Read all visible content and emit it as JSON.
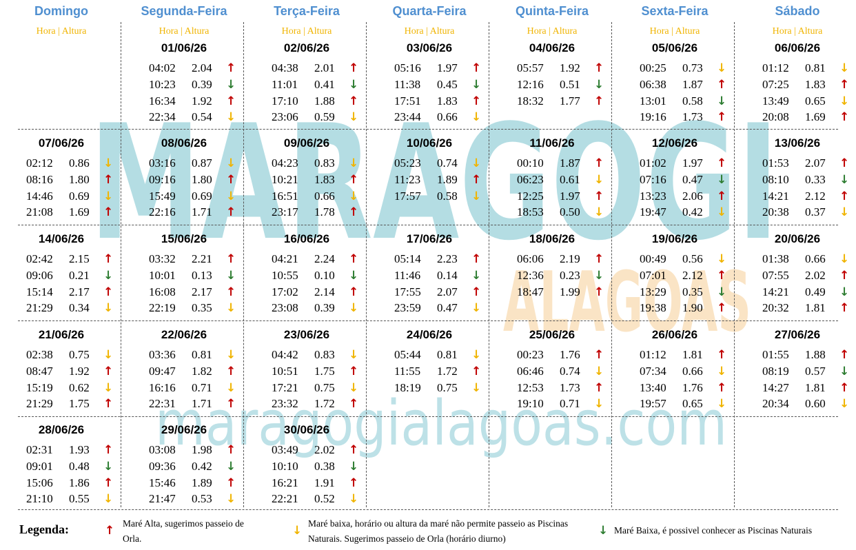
{
  "watermark": {
    "title": "MARAGOGI",
    "subtitle": "ALAGOAS",
    "url": "maragogialagoas.com"
  },
  "days": [
    "Domingo",
    "Segunda-Feira",
    "Terça-Feira",
    "Quarta-Feira",
    "Quinta-Feira",
    "Sexta-Feira",
    "Sábado"
  ],
  "subheader": "Hora | Altura",
  "colors": {
    "header": "#4f8fd0",
    "high": "#c00000",
    "low_no_tour": "#f0b400",
    "low_pools": "#2e7d32"
  },
  "weeks": [
    [
      null,
      {
        "date": "01/06/26",
        "tides": [
          [
            "04:02",
            "2.04",
            "up"
          ],
          [
            "10:23",
            "0.39",
            "dg"
          ],
          [
            "16:34",
            "1.92",
            "up"
          ],
          [
            "22:34",
            "0.54",
            "dy"
          ]
        ]
      },
      {
        "date": "02/06/26",
        "tides": [
          [
            "04:38",
            "2.01",
            "up"
          ],
          [
            "11:01",
            "0.41",
            "dg"
          ],
          [
            "17:10",
            "1.88",
            "up"
          ],
          [
            "23:06",
            "0.59",
            "dy"
          ]
        ]
      },
      {
        "date": "03/06/26",
        "tides": [
          [
            "05:16",
            "1.97",
            "up"
          ],
          [
            "11:38",
            "0.45",
            "dg"
          ],
          [
            "17:51",
            "1.83",
            "up"
          ],
          [
            "23:44",
            "0.66",
            "dy"
          ]
        ]
      },
      {
        "date": "04/06/26",
        "tides": [
          [
            "05:57",
            "1.92",
            "up"
          ],
          [
            "12:16",
            "0.51",
            "dg"
          ],
          [
            "18:32",
            "1.77",
            "up"
          ]
        ]
      },
      {
        "date": "05/06/26",
        "tides": [
          [
            "00:25",
            "0.73",
            "dy"
          ],
          [
            "06:38",
            "1.87",
            "up"
          ],
          [
            "13:01",
            "0.58",
            "dg"
          ],
          [
            "19:16",
            "1.73",
            "up"
          ]
        ]
      },
      {
        "date": "06/06/26",
        "tides": [
          [
            "01:12",
            "0.81",
            "dy"
          ],
          [
            "07:25",
            "1.83",
            "up"
          ],
          [
            "13:49",
            "0.65",
            "dy"
          ],
          [
            "20:08",
            "1.69",
            "up"
          ]
        ]
      }
    ],
    [
      {
        "date": "07/06/26",
        "tides": [
          [
            "02:12",
            "0.86",
            "dy"
          ],
          [
            "08:16",
            "1.80",
            "up"
          ],
          [
            "14:46",
            "0.69",
            "dy"
          ],
          [
            "21:08",
            "1.69",
            "up"
          ]
        ]
      },
      {
        "date": "08/06/26",
        "tides": [
          [
            "03:16",
            "0.87",
            "dy"
          ],
          [
            "09:16",
            "1.80",
            "up"
          ],
          [
            "15:49",
            "0.69",
            "dy"
          ],
          [
            "22:16",
            "1.71",
            "up"
          ]
        ]
      },
      {
        "date": "09/06/26",
        "tides": [
          [
            "04:23",
            "0.83",
            "dy"
          ],
          [
            "10:21",
            "1.83",
            "up"
          ],
          [
            "16:51",
            "0.66",
            "dy"
          ],
          [
            "23:17",
            "1.78",
            "up"
          ]
        ]
      },
      {
        "date": "10/06/26",
        "tides": [
          [
            "05:23",
            "0.74",
            "dy"
          ],
          [
            "11:23",
            "1.89",
            "up"
          ],
          [
            "17:57",
            "0.58",
            "dy"
          ]
        ]
      },
      {
        "date": "11/06/26",
        "tides": [
          [
            "00:10",
            "1.87",
            "up"
          ],
          [
            "06:23",
            "0.61",
            "dy"
          ],
          [
            "12:25",
            "1.97",
            "up"
          ],
          [
            "18:53",
            "0.50",
            "dy"
          ]
        ]
      },
      {
        "date": "12/06/26",
        "tides": [
          [
            "01:02",
            "1.97",
            "up"
          ],
          [
            "07:16",
            "0.47",
            "dg"
          ],
          [
            "13:23",
            "2.06",
            "up"
          ],
          [
            "19:47",
            "0.42",
            "dy"
          ]
        ]
      },
      {
        "date": "13/06/26",
        "tides": [
          [
            "01:53",
            "2.07",
            "up"
          ],
          [
            "08:10",
            "0.33",
            "dg"
          ],
          [
            "14:21",
            "2.12",
            "up"
          ],
          [
            "20:38",
            "0.37",
            "dy"
          ]
        ]
      }
    ],
    [
      {
        "date": "14/06/26",
        "tides": [
          [
            "02:42",
            "2.15",
            "up"
          ],
          [
            "09:06",
            "0.21",
            "dg"
          ],
          [
            "15:14",
            "2.17",
            "up"
          ],
          [
            "21:29",
            "0.34",
            "dy"
          ]
        ]
      },
      {
        "date": "15/06/26",
        "tides": [
          [
            "03:32",
            "2.21",
            "up"
          ],
          [
            "10:01",
            "0.13",
            "dg"
          ],
          [
            "16:08",
            "2.17",
            "up"
          ],
          [
            "22:19",
            "0.35",
            "dy"
          ]
        ]
      },
      {
        "date": "16/06/26",
        "tides": [
          [
            "04:21",
            "2.24",
            "up"
          ],
          [
            "10:55",
            "0.10",
            "dg"
          ],
          [
            "17:02",
            "2.14",
            "up"
          ],
          [
            "23:08",
            "0.39",
            "dy"
          ]
        ]
      },
      {
        "date": "17/06/26",
        "tides": [
          [
            "05:14",
            "2.23",
            "up"
          ],
          [
            "11:46",
            "0.14",
            "dg"
          ],
          [
            "17:55",
            "2.07",
            "up"
          ],
          [
            "23:59",
            "0.47",
            "dy"
          ]
        ]
      },
      {
        "date": "18/06/26",
        "tides": [
          [
            "06:06",
            "2.19",
            "up"
          ],
          [
            "12:36",
            "0.23",
            "dg"
          ],
          [
            "18:47",
            "1.99",
            "up"
          ]
        ]
      },
      {
        "date": "19/06/26",
        "tides": [
          [
            "00:49",
            "0.56",
            "dy"
          ],
          [
            "07:01",
            "2.12",
            "up"
          ],
          [
            "13:29",
            "0.35",
            "dg"
          ],
          [
            "19:38",
            "1.90",
            "up"
          ]
        ]
      },
      {
        "date": "20/06/26",
        "tides": [
          [
            "01:38",
            "0.66",
            "dy"
          ],
          [
            "07:55",
            "2.02",
            "up"
          ],
          [
            "14:21",
            "0.49",
            "dg"
          ],
          [
            "20:32",
            "1.81",
            "up"
          ]
        ]
      }
    ],
    [
      {
        "date": "21/06/26",
        "tides": [
          [
            "02:38",
            "0.75",
            "dy"
          ],
          [
            "08:47",
            "1.92",
            "up"
          ],
          [
            "15:19",
            "0.62",
            "dy"
          ],
          [
            "21:29",
            "1.75",
            "up"
          ]
        ]
      },
      {
        "date": "22/06/26",
        "tides": [
          [
            "03:36",
            "0.81",
            "dy"
          ],
          [
            "09:47",
            "1.82",
            "up"
          ],
          [
            "16:16",
            "0.71",
            "dy"
          ],
          [
            "22:31",
            "1.71",
            "up"
          ]
        ]
      },
      {
        "date": "23/06/26",
        "tides": [
          [
            "04:42",
            "0.83",
            "dy"
          ],
          [
            "10:51",
            "1.75",
            "up"
          ],
          [
            "17:21",
            "0.75",
            "dy"
          ],
          [
            "23:32",
            "1.72",
            "up"
          ]
        ]
      },
      {
        "date": "24/06/26",
        "tides": [
          [
            "05:44",
            "0.81",
            "dy"
          ],
          [
            "11:55",
            "1.72",
            "up"
          ],
          [
            "18:19",
            "0.75",
            "dy"
          ]
        ]
      },
      {
        "date": "25/06/26",
        "tides": [
          [
            "00:23",
            "1.76",
            "up"
          ],
          [
            "06:46",
            "0.74",
            "dy"
          ],
          [
            "12:53",
            "1.73",
            "up"
          ],
          [
            "19:10",
            "0.71",
            "dy"
          ]
        ]
      },
      {
        "date": "26/06/26",
        "tides": [
          [
            "01:12",
            "1.81",
            "up"
          ],
          [
            "07:34",
            "0.66",
            "dy"
          ],
          [
            "13:40",
            "1.76",
            "up"
          ],
          [
            "19:57",
            "0.65",
            "dy"
          ]
        ]
      },
      {
        "date": "27/06/26",
        "tides": [
          [
            "01:55",
            "1.88",
            "up"
          ],
          [
            "08:19",
            "0.57",
            "dg"
          ],
          [
            "14:27",
            "1.81",
            "up"
          ],
          [
            "20:34",
            "0.60",
            "dy"
          ]
        ]
      }
    ],
    [
      {
        "date": "28/06/26",
        "tides": [
          [
            "02:31",
            "1.93",
            "up"
          ],
          [
            "09:01",
            "0.48",
            "dg"
          ],
          [
            "15:06",
            "1.86",
            "up"
          ],
          [
            "21:10",
            "0.55",
            "dy"
          ]
        ]
      },
      {
        "date": "29/06/26",
        "tides": [
          [
            "03:08",
            "1.98",
            "up"
          ],
          [
            "09:36",
            "0.42",
            "dg"
          ],
          [
            "15:46",
            "1.89",
            "up"
          ],
          [
            "21:47",
            "0.53",
            "dy"
          ]
        ]
      },
      {
        "date": "30/06/26",
        "tides": [
          [
            "03:49",
            "2.02",
            "up"
          ],
          [
            "10:10",
            "0.38",
            "dg"
          ],
          [
            "16:21",
            "1.91",
            "up"
          ],
          [
            "22:21",
            "0.52",
            "dy"
          ]
        ]
      },
      null,
      null,
      null,
      null
    ]
  ],
  "legend": {
    "title": "Legenda:",
    "high": "Maré Alta, sugerimos passeio de Orla.",
    "low_no_tour": "Maré baixa, horário ou altura da maré não permite passeio as Piscinas Naturais. Sugerimos passeio de Orla (horário diurno)",
    "low_pools": "Maré Baixa, é possivel conhecer as Piscinas Naturais"
  }
}
